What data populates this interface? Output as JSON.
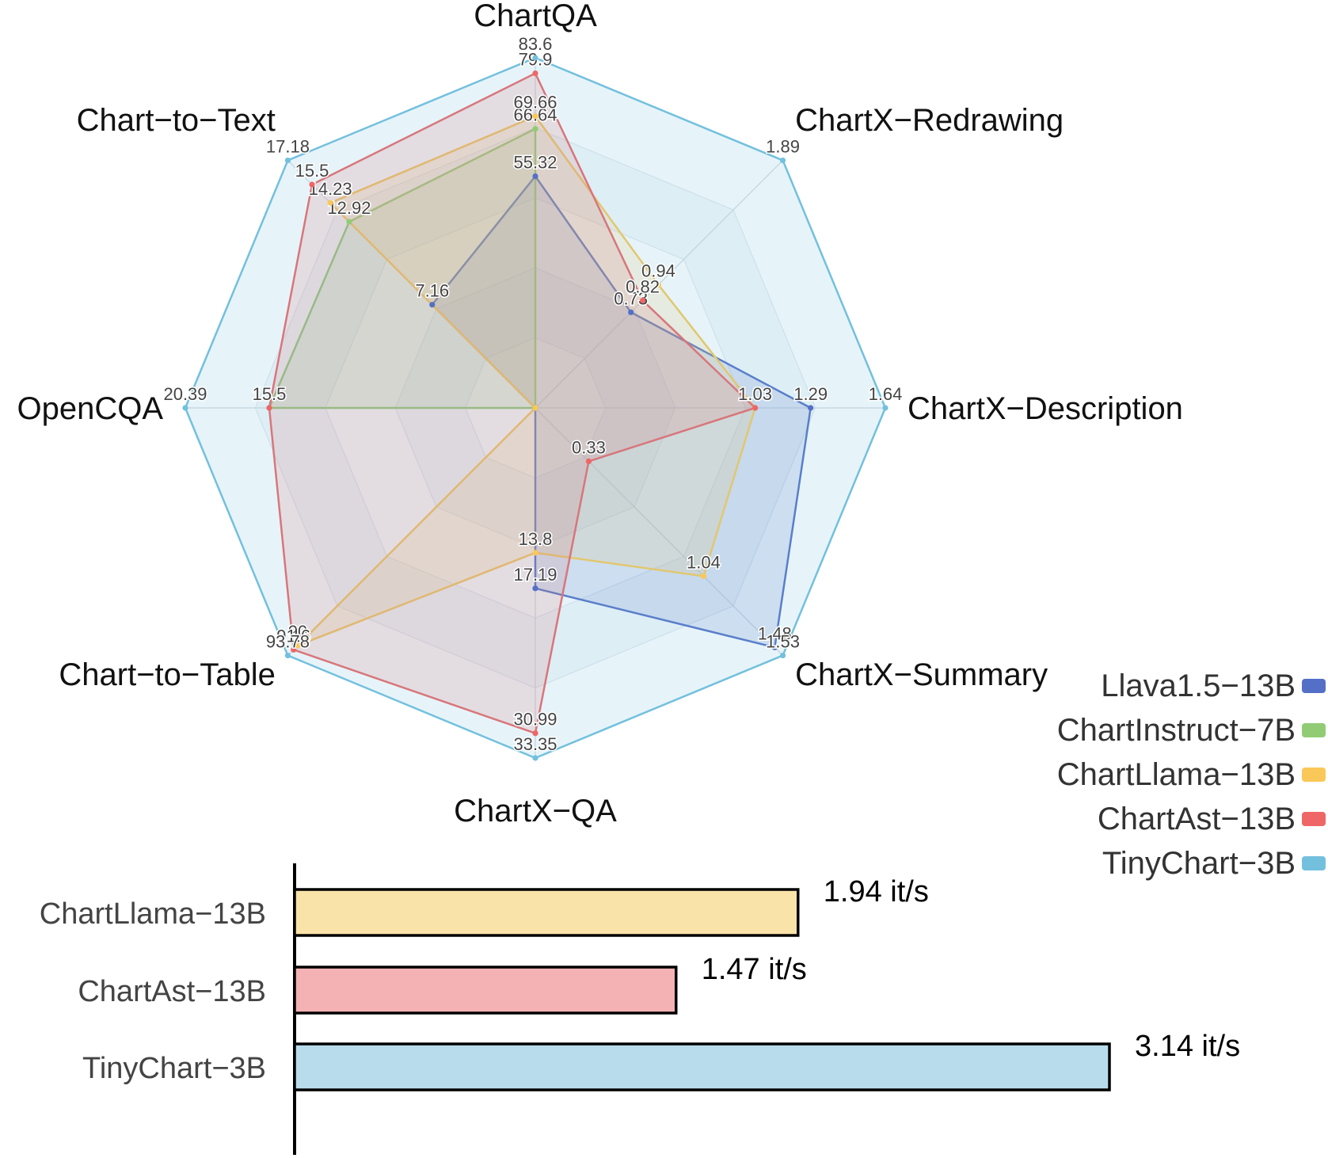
{
  "chart_data": [
    {
      "type": "radar",
      "axes": [
        "ChartQA",
        "ChartX−Redrawing",
        "ChartX−Description",
        "ChartX−Summary",
        "ChartX−QA",
        "Chart−to−Table",
        "OpenCQA",
        "Chart−to−Text"
      ],
      "axis_max": [
        83.6,
        1.89,
        1.64,
        1.53,
        33.35,
        93.78,
        20.39,
        17.18
      ],
      "series": [
        {
          "name": "Llava1.5−13B",
          "color": "#5470c6",
          "values": [
            55.32,
            0.73,
            1.29,
            1.48,
            17.19,
            0,
            0,
            7.16
          ],
          "labels": [
            "55.32",
            "0.73",
            "1.29",
            "1.48",
            "17.19",
            "",
            "",
            "7.16"
          ]
        },
        {
          "name": "ChartInstruct−7B",
          "color": "#91cc75",
          "values": [
            66.64,
            0,
            0,
            0,
            0,
            0,
            15.5,
            12.92
          ],
          "labels": [
            "66.64",
            "",
            "",
            "",
            "",
            "",
            "15.5",
            "12.92"
          ]
        },
        {
          "name": "ChartLlama−13B",
          "color": "#fac858",
          "values": [
            69.66,
            0.94,
            1.03,
            1.04,
            13.8,
            90,
            0,
            14.23
          ],
          "labels": [
            "69.66",
            "0.94",
            "1.03",
            "1.04",
            "13.8",
            "90",
            "",
            "14.23"
          ]
        },
        {
          "name": "ChartAst−13B",
          "color": "#ee6666",
          "values": [
            79.9,
            0.82,
            1.03,
            0.33,
            30.99,
            91.6,
            15.5,
            15.5
          ],
          "labels": [
            "79.9",
            "0.82",
            "1.03",
            "0.33",
            "30.99",
            "91.6",
            "15.5",
            "15.5"
          ]
        },
        {
          "name": "TinyChart−3B",
          "color": "#73c0de",
          "values": [
            83.6,
            1.89,
            1.64,
            1.53,
            33.35,
            93.78,
            20.39,
            17.18
          ],
          "labels": [
            "83.6",
            "1.89",
            "1.64",
            "1.53",
            "33.35",
            "93.78",
            "20.39",
            "17.18"
          ]
        }
      ]
    },
    {
      "type": "bar",
      "orientation": "horizontal",
      "categories": [
        "ChartLlama−13B",
        "ChartAst−13B",
        "TinyChart−3B"
      ],
      "values": [
        1.94,
        1.47,
        3.14
      ],
      "value_labels": [
        "1.94 it/s",
        "1.47 it/s",
        "3.14 it/s"
      ],
      "colors": [
        "#fae3a9",
        "#f4b2b4",
        "#b8dcec"
      ],
      "xlim": [
        0,
        3.32
      ]
    }
  ]
}
